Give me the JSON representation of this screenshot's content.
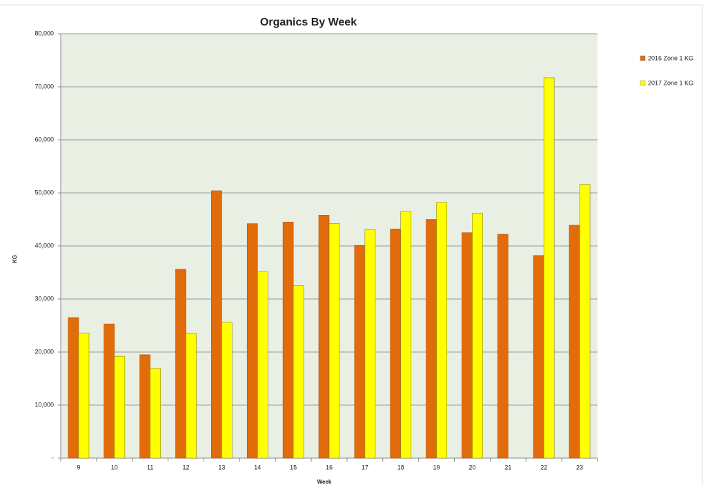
{
  "chart_data": {
    "type": "bar",
    "title": "Organics By Week",
    "x_label": "Week",
    "y_label": "KG",
    "categories": [
      "9",
      "10",
      "11",
      "12",
      "13",
      "14",
      "15",
      "16",
      "17",
      "18",
      "19",
      "20",
      "21",
      "22",
      "23"
    ],
    "series": [
      {
        "name": "2016 Zone 1 KG",
        "color": "#e36c0a",
        "values": [
          26500,
          25300,
          19500,
          35600,
          50400,
          44200,
          44500,
          45800,
          40100,
          43200,
          45000,
          42500,
          42200,
          38200,
          43900
        ]
      },
      {
        "name": "2017 Zone 1 KG",
        "color": "#ffff00",
        "values": [
          23600,
          19200,
          16900,
          23500,
          25600,
          35100,
          32500,
          44200,
          43100,
          46500,
          48200,
          46200,
          null,
          71700,
          51600
        ]
      }
    ],
    "ylim": [
      0,
      80000
    ],
    "yticks": [
      {
        "value": 0,
        "label": "-"
      },
      {
        "value": 10000,
        "label": "10,000"
      },
      {
        "value": 20000,
        "label": "20,000"
      },
      {
        "value": 30000,
        "label": "30,000"
      },
      {
        "value": 40000,
        "label": "40,000"
      },
      {
        "value": 50000,
        "label": "50,000"
      },
      {
        "value": 60000,
        "label": "60,000"
      },
      {
        "value": 70000,
        "label": "70,000"
      },
      {
        "value": 80000,
        "label": "80,000"
      }
    ],
    "grid": true,
    "legend": "right"
  }
}
